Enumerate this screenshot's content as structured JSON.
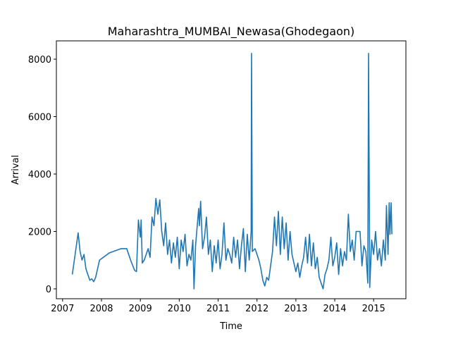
{
  "chart_data": {
    "type": "line",
    "title": "Maharashtra_MUMBAI_Newasa(Ghodegaon)",
    "x_label": "Time",
    "y_label": "Arrival",
    "color": "#1f77b4",
    "x": [
      2007.25,
      2007.4,
      2007.45,
      2007.5,
      2007.55,
      2007.6,
      2007.7,
      2007.75,
      2007.8,
      2007.85,
      2007.95,
      2008.2,
      2008.5,
      2008.65,
      2008.75,
      2008.85,
      2008.9,
      2008.95,
      2009.0,
      2009.02,
      2009.05,
      2009.1,
      2009.2,
      2009.25,
      2009.3,
      2009.35,
      2009.4,
      2009.45,
      2009.5,
      2009.55,
      2009.6,
      2009.65,
      2009.7,
      2009.75,
      2009.8,
      2009.85,
      2009.9,
      2009.95,
      2010.0,
      2010.05,
      2010.1,
      2010.15,
      2010.2,
      2010.25,
      2010.3,
      2010.35,
      2010.38,
      2010.42,
      2010.5,
      2010.52,
      2010.55,
      2010.6,
      2010.65,
      2010.7,
      2010.75,
      2010.8,
      2010.85,
      2010.9,
      2010.95,
      2011.0,
      2011.05,
      2011.1,
      2011.15,
      2011.2,
      2011.25,
      2011.3,
      2011.35,
      2011.4,
      2011.45,
      2011.5,
      2011.55,
      2011.6,
      2011.65,
      2011.7,
      2011.75,
      2011.8,
      2011.85,
      2011.86,
      2011.88,
      2011.95,
      2012.05,
      2012.1,
      2012.15,
      2012.2,
      2012.25,
      2012.3,
      2012.35,
      2012.4,
      2012.45,
      2012.5,
      2012.55,
      2012.6,
      2012.65,
      2012.7,
      2012.75,
      2012.8,
      2012.85,
      2012.9,
      2012.95,
      2013.0,
      2013.05,
      2013.1,
      2013.15,
      2013.2,
      2013.25,
      2013.3,
      2013.35,
      2013.4,
      2013.45,
      2013.5,
      2013.55,
      2013.6,
      2013.65,
      2013.7,
      2013.75,
      2013.8,
      2013.85,
      2013.9,
      2013.95,
      2014.0,
      2014.05,
      2014.1,
      2014.15,
      2014.2,
      2014.25,
      2014.3,
      2014.35,
      2014.4,
      2014.45,
      2014.5,
      2014.55,
      2014.65,
      2014.7,
      2014.75,
      2014.8,
      2014.85,
      2014.87,
      2014.9,
      2014.95,
      2015.0,
      2015.05,
      2015.1,
      2015.15,
      2015.2,
      2015.25,
      2015.3,
      2015.33,
      2015.37,
      2015.4,
      2015.42,
      2015.45,
      2015.47
    ],
    "values": [
      500,
      1950,
      1300,
      1000,
      1200,
      700,
      300,
      350,
      250,
      400,
      1000,
      1250,
      1400,
      1400,
      1000,
      650,
      600,
      2400,
      1800,
      2400,
      900,
      1000,
      1400,
      1100,
      2500,
      2200,
      3150,
      2600,
      3100,
      2000,
      1500,
      2300,
      1200,
      1700,
      900,
      1600,
      1100,
      1800,
      700,
      1700,
      1300,
      1900,
      800,
      1200,
      1000,
      1700,
      0,
      1500,
      2800,
      2200,
      3050,
      1400,
      1800,
      2500,
      1200,
      1700,
      600,
      1500,
      900,
      1700,
      700,
      1200,
      2300,
      1000,
      1400,
      1200,
      900,
      1800,
      1100,
      1700,
      700,
      1500,
      2100,
      600,
      1900,
      1000,
      2000,
      8200,
      1300,
      1400,
      1000,
      700,
      300,
      100,
      400,
      300,
      800,
      1300,
      2500,
      1500,
      2700,
      1200,
      2500,
      1400,
      2300,
      1000,
      2000,
      1200,
      900,
      600,
      900,
      400,
      800,
      1100,
      1800,
      900,
      1900,
      800,
      1600,
      700,
      1100,
      400,
      200,
      0,
      500,
      700,
      1000,
      1800,
      800,
      1100,
      1600,
      500,
      1400,
      800,
      1300,
      1000,
      2600,
      1300,
      1700,
      1000,
      2000,
      2000,
      800,
      1500,
      1300,
      200,
      8200,
      50,
      1700,
      1200,
      2000,
      1000,
      1400,
      800,
      1700,
      1000,
      2900,
      1200,
      3000,
      1900,
      3000,
      1900
    ],
    "xlim": [
      2006.84,
      2015.83
    ],
    "xticks": [
      2007,
      2008,
      2009,
      2010,
      2011,
      2012,
      2013,
      2014,
      2015
    ],
    "ylim": [
      -344,
      8638
    ],
    "yticks": [
      0,
      2000,
      4000,
      6000,
      8000
    ]
  }
}
